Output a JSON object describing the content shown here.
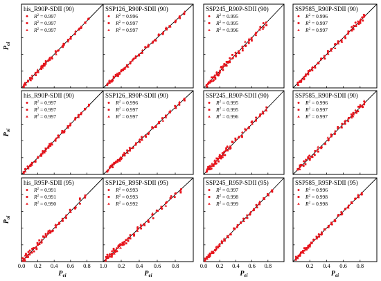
{
  "figure": {
    "xlabel_main": "P",
    "xlabel_sub": "ei",
    "ylabel_main": "P",
    "ylabel_sub": "oi",
    "r2_label_main": "R",
    "r2_label_sup": "2",
    "colors": {
      "point": "#e8141c",
      "line": "#000000",
      "frame": "#000000"
    }
  },
  "chart_data": [
    {
      "type": "scatter",
      "title": "his_R90P-SDII (90)",
      "r2": [
        "0.997",
        "0.997",
        "0.997"
      ],
      "xlim": [
        0,
        1
      ],
      "ylim": [
        0,
        1
      ],
      "xticks": [
        "0.0",
        "0.2",
        "0.4",
        "0.6",
        "0.8",
        "1.0"
      ],
      "yticks": [],
      "show_xticks": false,
      "show_ylabel": true,
      "show_xlabel": false,
      "markers": [
        "circle",
        "square",
        "triangle"
      ],
      "seed": 11,
      "spread": 0.02,
      "x": [
        0.03,
        0.05,
        0.08,
        0.11,
        0.13,
        0.17,
        0.2,
        0.24,
        0.26,
        0.28,
        0.3,
        0.33,
        0.35,
        0.37,
        0.42,
        0.45,
        0.5,
        0.52,
        0.57,
        0.6,
        0.66,
        0.7,
        0.73,
        0.78,
        0.82
      ]
    },
    {
      "type": "scatter",
      "title": "SSP126_R90P-SDII (90)",
      "r2": [
        "0.996",
        "0.997",
        "0.997"
      ],
      "xlim": [
        0,
        1
      ],
      "ylim": [
        0,
        1
      ],
      "show_xticks": false,
      "show_ylabel": false,
      "show_xlabel": false,
      "markers": [
        "circle",
        "square",
        "triangle"
      ],
      "seed": 12,
      "spread": 0.02,
      "x": [
        0.05,
        0.07,
        0.09,
        0.1,
        0.12,
        0.14,
        0.16,
        0.18,
        0.2,
        0.22,
        0.24,
        0.27,
        0.3,
        0.33,
        0.36,
        0.4,
        0.43,
        0.47,
        0.5,
        0.55,
        0.58,
        0.62,
        0.66,
        0.7,
        0.74,
        0.8,
        0.85,
        0.9
      ]
    },
    {
      "type": "scatter",
      "title": "SSP245_R90P-SDII (90)",
      "r2": [
        "0.995",
        "0.995",
        "0.996"
      ],
      "xlim": [
        0,
        1
      ],
      "ylim": [
        0,
        1
      ],
      "show_xticks": false,
      "show_ylabel": false,
      "show_xlabel": false,
      "markers": [
        "circle",
        "square",
        "triangle"
      ],
      "seed": 13,
      "spread": 0.035,
      "x": [
        0.04,
        0.06,
        0.08,
        0.1,
        0.12,
        0.14,
        0.16,
        0.18,
        0.2,
        0.22,
        0.24,
        0.26,
        0.28,
        0.3,
        0.33,
        0.36,
        0.4,
        0.44,
        0.48,
        0.52,
        0.56,
        0.6,
        0.65,
        0.7,
        0.74,
        0.78
      ]
    },
    {
      "type": "scatter",
      "title": "SSP585_R90P-SDII (90)",
      "r2": [
        "0.996",
        "0.997",
        "0.997"
      ],
      "xlim": [
        0,
        1
      ],
      "ylim": [
        0,
        1
      ],
      "show_xticks": false,
      "show_ylabel": false,
      "show_xlabel": false,
      "markers": [
        "circle",
        "square",
        "triangle"
      ],
      "seed": 14,
      "spread": 0.03,
      "x": [
        0.06,
        0.08,
        0.1,
        0.13,
        0.15,
        0.18,
        0.2,
        0.23,
        0.26,
        0.3,
        0.34,
        0.38,
        0.42,
        0.46,
        0.5,
        0.54,
        0.58,
        0.62,
        0.66,
        0.7,
        0.72,
        0.75,
        0.78,
        0.8,
        0.83,
        0.85
      ]
    },
    {
      "type": "scatter",
      "title": "his_R90P-SDII (90)",
      "r2": [
        "0.997",
        "0.997",
        "0.997"
      ],
      "xlim": [
        0,
        1
      ],
      "ylim": [
        0,
        1
      ],
      "show_xticks": false,
      "show_ylabel": true,
      "show_xlabel": false,
      "markers": [
        "circle",
        "square",
        "triangle"
      ],
      "seed": 21,
      "spread": 0.02,
      "x": [
        0.03,
        0.05,
        0.08,
        0.11,
        0.13,
        0.17,
        0.2,
        0.24,
        0.26,
        0.28,
        0.3,
        0.33,
        0.35,
        0.37,
        0.42,
        0.45,
        0.5,
        0.52,
        0.57,
        0.6,
        0.66,
        0.7,
        0.73,
        0.78,
        0.82
      ]
    },
    {
      "type": "scatter",
      "title": "SSP126_R90P-SDII (90)",
      "r2": [
        "0.996",
        "0.997",
        "0.997"
      ],
      "xlim": [
        0,
        1
      ],
      "ylim": [
        0,
        1
      ],
      "show_xticks": false,
      "show_ylabel": false,
      "show_xlabel": false,
      "markers": [
        "circle",
        "square",
        "triangle"
      ],
      "seed": 22,
      "spread": 0.02,
      "x": [
        0.05,
        0.07,
        0.09,
        0.1,
        0.12,
        0.14,
        0.16,
        0.18,
        0.2,
        0.22,
        0.24,
        0.27,
        0.3,
        0.33,
        0.36,
        0.4,
        0.43,
        0.47,
        0.5,
        0.55,
        0.58,
        0.62,
        0.66,
        0.7,
        0.74,
        0.8,
        0.85,
        0.9
      ]
    },
    {
      "type": "scatter",
      "title": "SSP245_R90P-SDII (90)",
      "r2": [
        "0.995",
        "0.995",
        "0.996"
      ],
      "xlim": [
        0,
        1
      ],
      "ylim": [
        0,
        1
      ],
      "show_xticks": false,
      "show_ylabel": false,
      "show_xlabel": false,
      "markers": [
        "circle",
        "square",
        "triangle"
      ],
      "seed": 23,
      "spread": 0.035,
      "x": [
        0.04,
        0.06,
        0.08,
        0.1,
        0.12,
        0.14,
        0.16,
        0.18,
        0.2,
        0.22,
        0.24,
        0.26,
        0.28,
        0.3,
        0.33,
        0.36,
        0.4,
        0.44,
        0.48,
        0.52,
        0.56,
        0.6,
        0.65,
        0.7,
        0.74,
        0.78
      ]
    },
    {
      "type": "scatter",
      "title": "SSP585_R90P-SDII (90)",
      "r2": [
        "0.996",
        "0.997",
        "0.997"
      ],
      "xlim": [
        0,
        1
      ],
      "ylim": [
        0,
        1
      ],
      "show_xticks": false,
      "show_ylabel": false,
      "show_xlabel": false,
      "markers": [
        "circle",
        "square",
        "triangle"
      ],
      "seed": 24,
      "spread": 0.03,
      "x": [
        0.06,
        0.08,
        0.1,
        0.13,
        0.15,
        0.18,
        0.2,
        0.23,
        0.26,
        0.3,
        0.34,
        0.38,
        0.42,
        0.46,
        0.5,
        0.54,
        0.58,
        0.62,
        0.66,
        0.7,
        0.72,
        0.75,
        0.78,
        0.8,
        0.83,
        0.85
      ]
    },
    {
      "type": "scatter",
      "title": "his_R95P-SDII (95)",
      "r2": [
        "0.991",
        "0.991",
        "0.990"
      ],
      "xlim": [
        0,
        1
      ],
      "ylim": [
        0,
        1
      ],
      "xticks": [
        "0.0",
        "0.2",
        "0.4",
        "0.6",
        "0.8",
        "1.0"
      ],
      "show_xticks": true,
      "show_ylabel": true,
      "show_xlabel": true,
      "markers": [
        "circle",
        "square",
        "triangle"
      ],
      "seed": 31,
      "spread": 0.035,
      "x": [
        0.02,
        0.04,
        0.06,
        0.08,
        0.1,
        0.13,
        0.15,
        0.18,
        0.2,
        0.22,
        0.25,
        0.27,
        0.3,
        0.33,
        0.35,
        0.38,
        0.42,
        0.46,
        0.5,
        0.55,
        0.6,
        0.66,
        0.72,
        0.78
      ]
    },
    {
      "type": "scatter",
      "title": "SSP126_R95P-SDII (95)",
      "r2": [
        "0.993",
        "0.993",
        "0.992"
      ],
      "xlim": [
        0,
        1
      ],
      "ylim": [
        0,
        1
      ],
      "xticks": [
        "0.2",
        "0.4",
        "0.6",
        "0.8"
      ],
      "show_xticks": true,
      "show_ylabel": false,
      "show_xlabel": true,
      "markers": [
        "circle",
        "square",
        "triangle"
      ],
      "seed": 32,
      "spread": 0.035,
      "x": [
        0.03,
        0.05,
        0.07,
        0.09,
        0.1,
        0.12,
        0.13,
        0.15,
        0.17,
        0.19,
        0.21,
        0.23,
        0.25,
        0.28,
        0.3,
        0.34,
        0.38,
        0.42,
        0.46,
        0.5,
        0.55,
        0.6,
        0.65,
        0.7,
        0.75,
        0.8,
        0.86
      ]
    },
    {
      "type": "scatter",
      "title": "SSP245_R95P-SDII (95)",
      "r2": [
        "0.997",
        "0.998",
        "0.999"
      ],
      "xlim": [
        0,
        1
      ],
      "ylim": [
        0,
        1
      ],
      "xticks": [
        "0.0",
        "0.2",
        "0.4",
        "0.6",
        "0.8"
      ],
      "show_xticks": true,
      "show_ylabel": false,
      "show_xlabel": true,
      "markers": [
        "circle",
        "square",
        "triangle"
      ],
      "seed": 33,
      "spread": 0.02,
      "x": [
        0.02,
        0.04,
        0.06,
        0.08,
        0.1,
        0.12,
        0.14,
        0.16,
        0.18,
        0.2,
        0.23,
        0.26,
        0.3,
        0.34,
        0.38,
        0.42,
        0.46,
        0.5,
        0.54,
        0.58,
        0.62,
        0.66,
        0.7,
        0.75,
        0.8,
        0.85
      ]
    },
    {
      "type": "scatter",
      "title": "SSP585_R95P-SDII (95)",
      "r2": [
        "0.996",
        "0.998",
        "0.998"
      ],
      "xlim": [
        0,
        1
      ],
      "ylim": [
        0,
        1
      ],
      "xticks": [
        "0.2",
        "0.4",
        "0.6",
        "0.8"
      ],
      "show_xticks": true,
      "show_ylabel": false,
      "show_xlabel": true,
      "markers": [
        "circle",
        "square",
        "triangle"
      ],
      "seed": 34,
      "spread": 0.02,
      "x": [
        0.04,
        0.06,
        0.08,
        0.1,
        0.12,
        0.14,
        0.16,
        0.18,
        0.2,
        0.22,
        0.25,
        0.28,
        0.31,
        0.34,
        0.38,
        0.42,
        0.46,
        0.5,
        0.54,
        0.58,
        0.62,
        0.66,
        0.7,
        0.74,
        0.78,
        0.82
      ]
    }
  ]
}
